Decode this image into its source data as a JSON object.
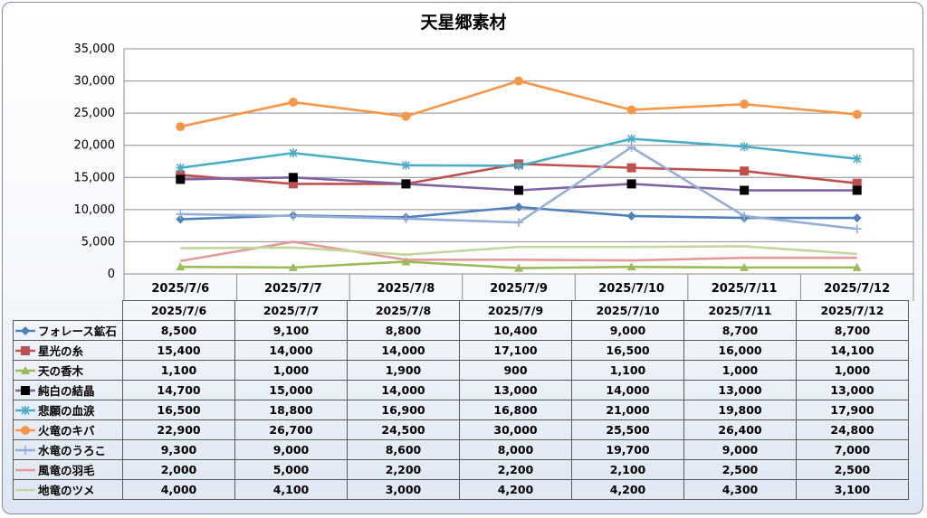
{
  "chart_data": {
    "type": "line",
    "title": "天星郷素材",
    "categories": [
      "2025/7/6",
      "2025/7/7",
      "2025/7/8",
      "2025/7/9",
      "2025/7/10",
      "2025/7/11",
      "2025/7/12"
    ],
    "ylim": [
      0,
      35000
    ],
    "yticks": [
      "0",
      "5,000",
      "10,000",
      "15,000",
      "20,000",
      "25,000",
      "30,000",
      "35,000"
    ],
    "grid": true,
    "legend": "data table below chart",
    "series": [
      {
        "name": "フォレース鉱石",
        "color": "#4f81bd",
        "marker": "diamond",
        "values": [
          8500,
          9100,
          8800,
          10400,
          9000,
          8700,
          8700
        ],
        "labels": [
          "8,500",
          "9,100",
          "8,800",
          "10,400",
          "9,000",
          "8,700",
          "8,700"
        ]
      },
      {
        "name": "星光の糸",
        "color": "#c0504d",
        "marker": "square",
        "values": [
          15400,
          14000,
          14000,
          17100,
          16500,
          16000,
          14100
        ],
        "labels": [
          "15,400",
          "14,000",
          "14,000",
          "17,100",
          "16,500",
          "16,000",
          "14,100"
        ]
      },
      {
        "name": "天の香木",
        "color": "#9bbb59",
        "marker": "triangle",
        "values": [
          1100,
          1000,
          1900,
          900,
          1100,
          1000,
          1000
        ],
        "labels": [
          "1,100",
          "1,000",
          "1,900",
          "900",
          "1,100",
          "1,000",
          "1,000"
        ]
      },
      {
        "name": "純白の結晶",
        "color": "#8064a2",
        "marker": "blacksquare",
        "values": [
          14700,
          15000,
          14000,
          13000,
          14000,
          13000,
          13000
        ],
        "labels": [
          "14,700",
          "15,000",
          "14,000",
          "13,000",
          "14,000",
          "13,000",
          "13,000"
        ]
      },
      {
        "name": "悲願の血涙",
        "color": "#4bacc6",
        "marker": "asterisk",
        "values": [
          16500,
          18800,
          16900,
          16800,
          21000,
          19800,
          17900
        ],
        "labels": [
          "16,500",
          "18,800",
          "16,900",
          "16,800",
          "21,000",
          "19,800",
          "17,900"
        ]
      },
      {
        "name": "火竜のキバ",
        "color": "#f79646",
        "marker": "circle",
        "values": [
          22900,
          26700,
          24500,
          30000,
          25500,
          26400,
          24800
        ],
        "labels": [
          "22,900",
          "26,700",
          "24,500",
          "30,000",
          "25,500",
          "26,400",
          "24,800"
        ]
      },
      {
        "name": "水竜のうろこ",
        "color": "#95aed8",
        "marker": "plus",
        "values": [
          9300,
          9000,
          8600,
          8000,
          19700,
          9000,
          7000
        ],
        "labels": [
          "9,300",
          "9,000",
          "8,600",
          "8,000",
          "19,700",
          "9,000",
          "7,000"
        ]
      },
      {
        "name": "風竜の羽毛",
        "color": "#e29b9a",
        "marker": "none",
        "values": [
          2000,
          5000,
          2200,
          2200,
          2100,
          2500,
          2500
        ],
        "labels": [
          "2,000",
          "5,000",
          "2,200",
          "2,200",
          "2,100",
          "2,500",
          "2,500"
        ]
      },
      {
        "name": "地竜のツメ",
        "color": "#c3d69b",
        "marker": "none",
        "values": [
          4000,
          4100,
          3000,
          4200,
          4200,
          4300,
          3100
        ],
        "labels": [
          "4,000",
          "4,100",
          "3,000",
          "4,200",
          "4,200",
          "4,300",
          "3,100"
        ]
      }
    ]
  }
}
